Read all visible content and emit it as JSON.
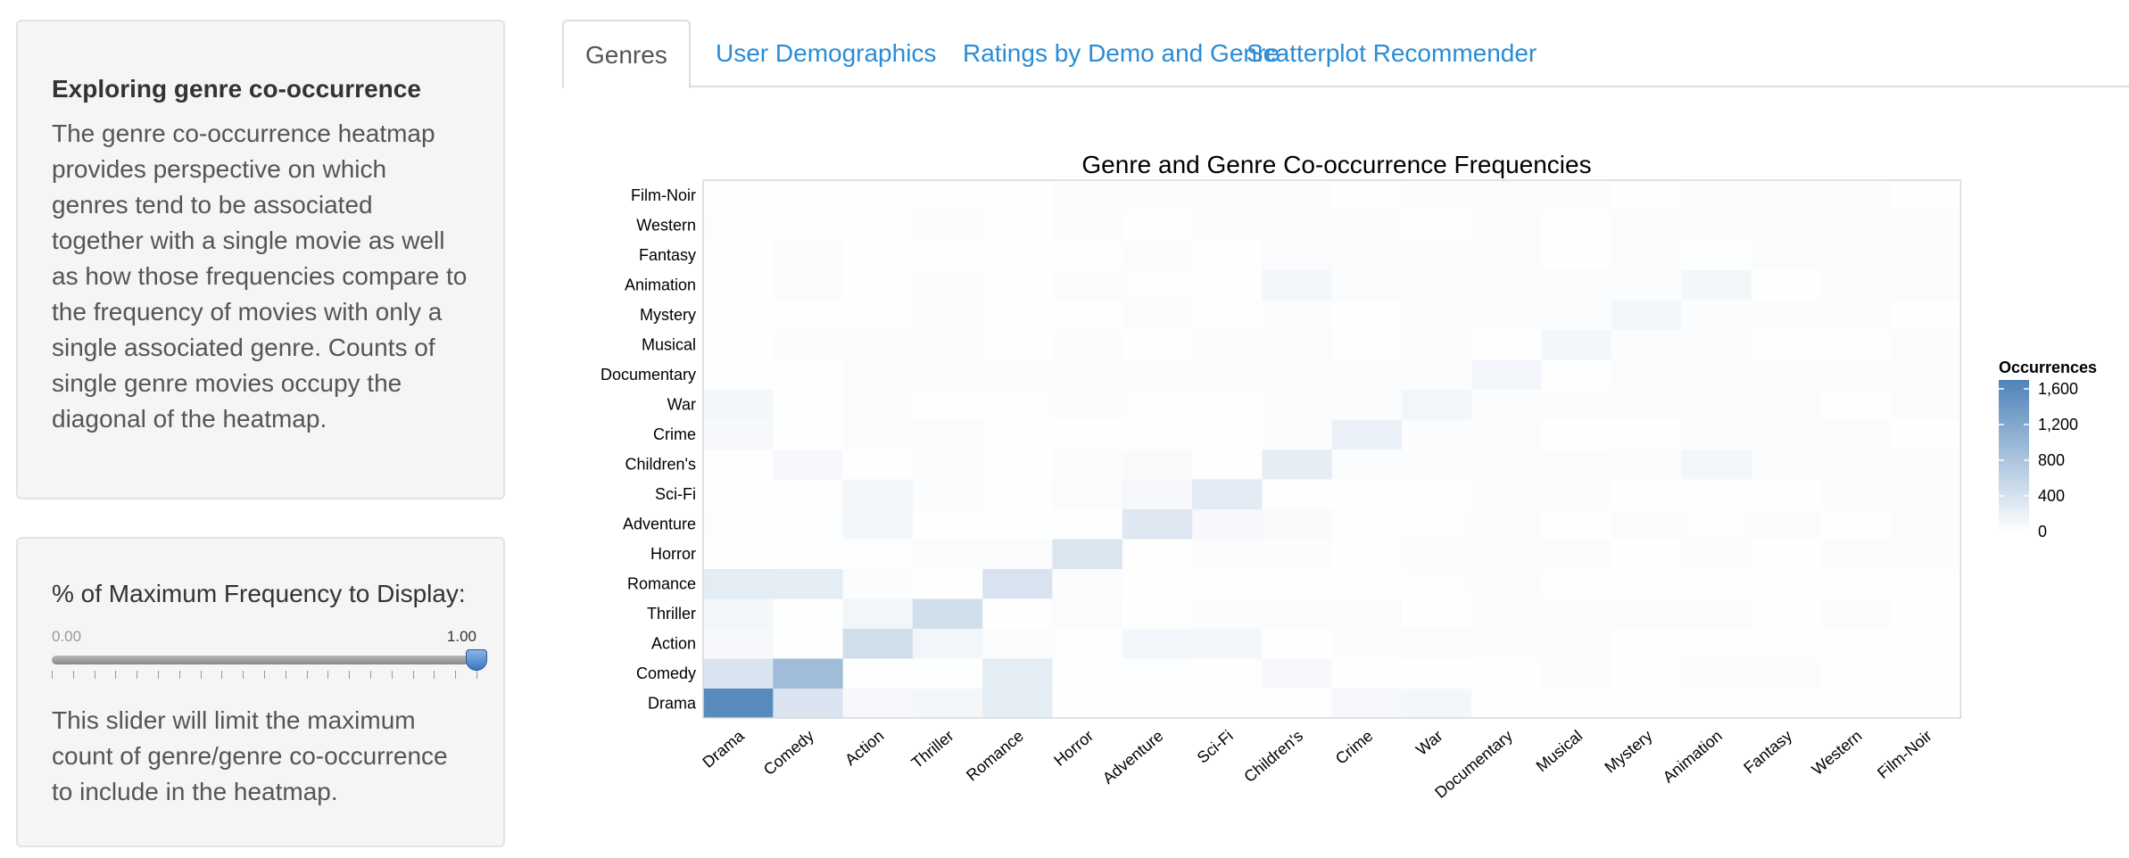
{
  "sidebar": {
    "about": {
      "title": "Exploring genre co-occurrence",
      "body": "The genre co-occurrence heatmap provides perspective on which genres tend to be associated together with a single movie as well as how those frequencies compare to the frequency of movies with only a single associated genre. Counts of single genre movies occupy the diagonal of the heatmap."
    },
    "slider": {
      "label": "% of Maximum Frequency to Display:",
      "min_label": "0.00",
      "max_label": "1.00",
      "value": 1.0,
      "help": "This slider will limit the maximum count of genre/genre co-occurrence to include in the heatmap."
    }
  },
  "tabs": [
    {
      "label": "Genres",
      "active": true
    },
    {
      "label": "User Demographics",
      "active": false
    },
    {
      "label": "Ratings by Demo and Genre",
      "active": false
    },
    {
      "label": "Scatterplot Recommender",
      "active": false
    }
  ],
  "colors": {
    "accent": "#2a8cd5",
    "heat_low": "#ffffff",
    "heat_high": "#4f83b8"
  },
  "chart_data": {
    "type": "heatmap",
    "title": "Genre and Genre Co-occurrence Frequencies",
    "genres": [
      "Drama",
      "Comedy",
      "Action",
      "Thriller",
      "Romance",
      "Horror",
      "Adventure",
      "Sci-Fi",
      "Children's",
      "Crime",
      "War",
      "Documentary",
      "Musical",
      "Mystery",
      "Animation",
      "Fantasy",
      "Western",
      "Film-Noir"
    ],
    "legend_title": "Occurrences",
    "legend_ticks": [
      "1,600",
      "1,200",
      "800",
      "400",
      "0"
    ],
    "scale_max": 1700,
    "values": [
      [
        1600,
        370,
        90,
        110,
        260,
        10,
        30,
        20,
        20,
        90,
        110,
        10,
        20,
        20,
        10,
        10,
        30,
        20
      ],
      [
        370,
        920,
        20,
        20,
        260,
        20,
        30,
        10,
        90,
        20,
        20,
        10,
        40,
        10,
        40,
        40,
        20,
        10
      ],
      [
        90,
        20,
        450,
        130,
        40,
        30,
        120,
        110,
        10,
        40,
        50,
        0,
        0,
        10,
        10,
        10,
        20,
        10
      ],
      [
        110,
        20,
        130,
        440,
        10,
        60,
        10,
        40,
        0,
        60,
        10,
        0,
        0,
        40,
        0,
        10,
        0,
        20
      ],
      [
        260,
        260,
        40,
        10,
        380,
        0,
        20,
        20,
        10,
        10,
        30,
        0,
        20,
        10,
        10,
        10,
        10,
        10
      ],
      [
        10,
        20,
        30,
        60,
        0,
        350,
        10,
        60,
        0,
        10,
        0,
        0,
        0,
        10,
        0,
        10,
        0,
        0
      ],
      [
        30,
        30,
        120,
        10,
        20,
        10,
        310,
        90,
        70,
        10,
        30,
        0,
        10,
        0,
        30,
        40,
        10,
        0
      ],
      [
        20,
        10,
        110,
        40,
        20,
        60,
        90,
        270,
        10,
        10,
        10,
        0,
        0,
        10,
        10,
        20,
        0,
        0
      ],
      [
        20,
        90,
        10,
        0,
        10,
        0,
        70,
        10,
        240,
        0,
        0,
        0,
        60,
        0,
        120,
        60,
        0,
        0
      ],
      [
        90,
        20,
        40,
        60,
        10,
        10,
        10,
        10,
        0,
        200,
        0,
        0,
        10,
        20,
        0,
        0,
        0,
        10
      ],
      [
        110,
        20,
        50,
        10,
        30,
        0,
        30,
        10,
        0,
        0,
        130,
        0,
        0,
        0,
        0,
        0,
        10,
        0
      ],
      [
        10,
        10,
        0,
        0,
        0,
        0,
        0,
        0,
        0,
        0,
        0,
        130,
        10,
        0,
        0,
        0,
        0,
        0
      ],
      [
        20,
        40,
        0,
        0,
        20,
        0,
        10,
        0,
        60,
        10,
        0,
        10,
        110,
        0,
        50,
        10,
        10,
        0
      ],
      [
        20,
        10,
        10,
        40,
        10,
        10,
        0,
        10,
        0,
        20,
        0,
        0,
        0,
        110,
        0,
        0,
        0,
        10
      ],
      [
        10,
        40,
        10,
        0,
        10,
        0,
        30,
        10,
        120,
        0,
        0,
        0,
        50,
        0,
        110,
        20,
        0,
        0
      ],
      [
        10,
        40,
        10,
        10,
        10,
        10,
        40,
        20,
        60,
        0,
        0,
        0,
        10,
        0,
        20,
        60,
        0,
        0
      ],
      [
        30,
        20,
        20,
        0,
        10,
        0,
        10,
        0,
        0,
        0,
        10,
        0,
        10,
        0,
        0,
        0,
        60,
        0
      ],
      [
        20,
        10,
        10,
        20,
        10,
        0,
        0,
        0,
        0,
        10,
        0,
        0,
        0,
        10,
        0,
        0,
        0,
        20
      ]
    ]
  }
}
